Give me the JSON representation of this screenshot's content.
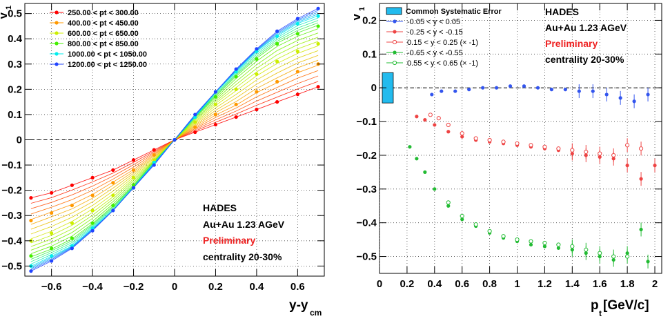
{
  "chart_data": [
    {
      "type": "scatter",
      "xlabel": "y-y",
      "xlabel_sub": "cm",
      "ylabel": "v",
      "ylabel_sub": "1",
      "xlim": [
        -0.73,
        0.73
      ],
      "ylim": [
        -0.54,
        0.54
      ],
      "xticks": [
        -0.6,
        -0.4,
        -0.2,
        0,
        0.2,
        0.4,
        0.6
      ],
      "xtick_labels": [
        "−0.6",
        "−0.4",
        "−0.2",
        "0",
        "0.2",
        "0.4",
        "0.6"
      ],
      "yticks": [
        -0.5,
        -0.4,
        -0.3,
        -0.2,
        -0.1,
        0,
        0.1,
        0.2,
        0.3,
        0.4,
        0.5
      ],
      "ytick_labels": [
        "−0.5",
        "−0.4",
        "−0.3",
        "−0.2",
        "−0.1",
        "0",
        "0.1",
        "0.2",
        "0.3",
        "0.4",
        "0.5"
      ],
      "grid": true,
      "legend_position": "top-left",
      "x": [
        -0.7,
        -0.6,
        -0.5,
        -0.4,
        -0.3,
        -0.2,
        -0.1,
        0,
        0.1,
        0.2,
        0.3,
        0.4,
        0.5,
        0.6,
        0.7
      ],
      "series": [
        {
          "name": "250.00 < pt < 300.00",
          "color": "#ff0000",
          "y": [
            -0.23,
            -0.21,
            -0.18,
            -0.15,
            -0.12,
            -0.08,
            -0.04,
            0,
            0.03,
            0.06,
            0.09,
            0.12,
            0.15,
            0.18,
            0.21
          ]
        },
        {
          "name": "400.00 < pt < 450.00",
          "color": "#ff9900",
          "y": [
            -0.32,
            -0.29,
            -0.26,
            -0.22,
            -0.17,
            -0.12,
            -0.06,
            0,
            0.05,
            0.1,
            0.14,
            0.19,
            0.23,
            0.27,
            0.3
          ]
        },
        {
          "name": "600.00 < pt < 650.00",
          "color": "#ccee00",
          "y": [
            -0.4,
            -0.37,
            -0.33,
            -0.28,
            -0.22,
            -0.15,
            -0.08,
            0,
            0.07,
            0.14,
            0.2,
            0.26,
            0.31,
            0.35,
            0.38
          ]
        },
        {
          "name": "800.00 < pt < 850.00",
          "color": "#44ee00",
          "y": [
            -0.46,
            -0.43,
            -0.39,
            -0.33,
            -0.26,
            -0.18,
            -0.09,
            0,
            0.09,
            0.17,
            0.25,
            0.32,
            0.38,
            0.42,
            0.45
          ]
        },
        {
          "name": "1000.00 < pt < 1050.00",
          "color": "#00eeee",
          "y": [
            -0.5,
            -0.46,
            -0.42,
            -0.35,
            -0.28,
            -0.19,
            -0.09,
            0,
            0.09,
            0.19,
            0.27,
            0.35,
            0.41,
            0.46,
            0.49
          ]
        },
        {
          "name": "1200.00 < pt < 1250.00",
          "color": "#2244ff",
          "y": [
            -0.52,
            -0.48,
            -0.43,
            -0.36,
            -0.28,
            -0.19,
            -0.1,
            0,
            0.1,
            0.19,
            0.28,
            0.36,
            0.43,
            0.48,
            0.52
          ]
        }
      ],
      "annotations": {
        "experiment": "HADES",
        "system": "Au+Au 1.23 AGeV",
        "status": "Preliminary",
        "centrality": "centrality 20-30%"
      },
      "colors": {
        "experiment": "#000000",
        "status": "#ee2222"
      }
    },
    {
      "type": "scatter",
      "xlabel": "p",
      "xlabel_sub": "t",
      "xlabel_unit": " [GeV/c]",
      "ylabel": "v",
      "ylabel_sub": "1",
      "xlim": [
        0,
        2.05
      ],
      "ylim": [
        -0.55,
        0.25
      ],
      "xticks": [
        0,
        0.2,
        0.4,
        0.6,
        0.8,
        1,
        1.2,
        1.4,
        1.6,
        1.8,
        2
      ],
      "xtick_labels": [
        "0",
        "0.2",
        "0.4",
        "0.6",
        "0.8",
        "1",
        "1.2",
        "1.4",
        "1.6",
        "1.8",
        "2"
      ],
      "yticks": [
        -0.5,
        -0.4,
        -0.3,
        -0.2,
        -0.1,
        0,
        0.1,
        0.2
      ],
      "ytick_labels": [
        "−0.5",
        "−0.4",
        "−0.3",
        "−0.2",
        "−0.1",
        "0",
        "0.1",
        "0.2"
      ],
      "grid": true,
      "legend_position": "top-left",
      "systematic_error": {
        "name": "Common Systematic Error",
        "color": "#22bbee",
        "x": [
          0.02,
          0.1
        ],
        "y": [
          -0.045,
          0.045
        ]
      },
      "series": [
        {
          "name": "-0.05 < y < 0.05",
          "color": "#3355ee",
          "marker": "filled",
          "x": [
            0.38,
            0.45,
            0.55,
            0.65,
            0.75,
            0.85,
            0.95,
            1.05,
            1.15,
            1.25,
            1.35,
            1.45,
            1.55,
            1.65,
            1.75,
            1.85,
            1.95
          ],
          "y": [
            -0.02,
            -0.01,
            -0.01,
            -0.005,
            0,
            0,
            0.005,
            0.005,
            0,
            -0.005,
            -0.005,
            -0.01,
            -0.01,
            -0.02,
            -0.03,
            -0.04,
            -0.02
          ]
        },
        {
          "name": "-0.25 < y < -0.15",
          "color": "#ee4444",
          "marker": "filled",
          "x": [
            0.27,
            0.33,
            0.4,
            0.5,
            0.6,
            0.7,
            0.8,
            0.9,
            1.0,
            1.1,
            1.2,
            1.3,
            1.4,
            1.5,
            1.6,
            1.7,
            1.8,
            1.9,
            2.0
          ],
          "y": [
            -0.085,
            -0.095,
            -0.11,
            -0.13,
            -0.145,
            -0.155,
            -0.16,
            -0.165,
            -0.17,
            -0.175,
            -0.18,
            -0.185,
            -0.195,
            -0.2,
            -0.205,
            -0.21,
            -0.23,
            -0.27,
            -0.23
          ]
        },
        {
          "name": "0.15 < y < 0.25 (× -1)",
          "color": "#ee4444",
          "marker": "open",
          "x": [
            0.37,
            0.43,
            0.5,
            0.6,
            0.7,
            0.8,
            0.9,
            1.0,
            1.1,
            1.2,
            1.3,
            1.4,
            1.5,
            1.6,
            1.7,
            1.8,
            1.9
          ],
          "y": [
            -0.08,
            -0.09,
            -0.11,
            -0.135,
            -0.15,
            -0.155,
            -0.16,
            -0.165,
            -0.17,
            -0.175,
            -0.18,
            -0.185,
            -0.19,
            -0.195,
            -0.2,
            -0.17,
            -0.18
          ]
        },
        {
          "name": "-0.65 < y < -0.55",
          "color": "#22bb33",
          "marker": "filled",
          "x": [
            0.22,
            0.27,
            0.33,
            0.4,
            0.5,
            0.6,
            0.7,
            0.8,
            0.9,
            1.0,
            1.1,
            1.2,
            1.3,
            1.4,
            1.5,
            1.6,
            1.7,
            1.8,
            1.9,
            1.95
          ],
          "y": [
            -0.175,
            -0.21,
            -0.25,
            -0.3,
            -0.35,
            -0.39,
            -0.41,
            -0.43,
            -0.445,
            -0.455,
            -0.465,
            -0.47,
            -0.475,
            -0.48,
            -0.49,
            -0.5,
            -0.51,
            -0.49,
            -0.42,
            -0.515
          ]
        },
        {
          "name": "0.55 < y < 0.65 (× -1)",
          "color": "#22bb33",
          "marker": "open",
          "x": [
            0.5,
            0.6,
            0.7,
            0.8,
            0.9,
            1.0,
            1.1,
            1.2,
            1.3,
            1.4,
            1.5,
            1.6,
            1.7,
            1.8
          ],
          "y": [
            -0.34,
            -0.38,
            -0.405,
            -0.425,
            -0.44,
            -0.45,
            -0.455,
            -0.46,
            -0.465,
            -0.47,
            -0.48,
            -0.49,
            -0.5,
            -0.5
          ]
        }
      ],
      "annotations": {
        "experiment": "HADES",
        "system": "Au+Au 1.23 AGeV",
        "status": "Preliminary",
        "centrality": "centrality 20-30%"
      },
      "colors": {
        "experiment": "#000000",
        "status": "#ee2222"
      }
    }
  ]
}
